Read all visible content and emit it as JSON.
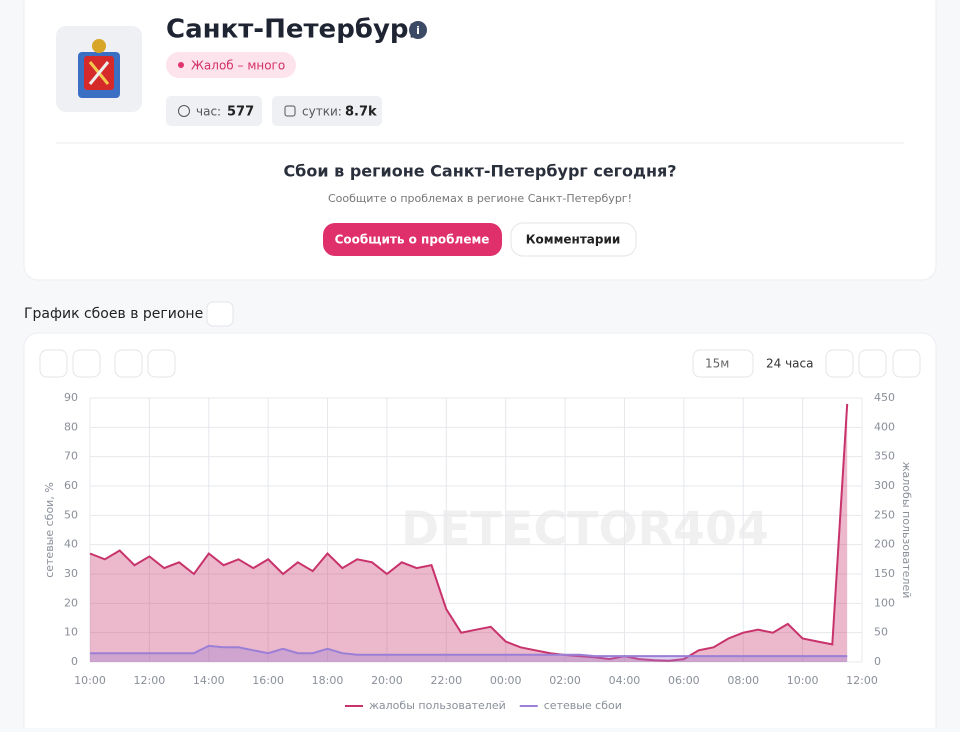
{
  "header": {
    "title": "Санкт-Петербург",
    "badge": "Жалоб – много",
    "stats": [
      {
        "label": "час:",
        "value": "577"
      },
      {
        "label": "сутки:",
        "value": "8.7k"
      }
    ]
  },
  "report": {
    "question": "Сбои в регионе Санкт-Петербург сегодня?",
    "subtitle": "Сообщите о проблемах в регионе Санкт-Петербург!",
    "buttons": [
      "Сообщить о проблеме",
      "Комментарии"
    ]
  },
  "chart_section": {
    "heading": "График сбоев в регионе",
    "interval": "15м",
    "period": "24 часа",
    "watermark": "DETECTOR404"
  },
  "chart_data": {
    "type": "line",
    "ylabel": "сетевые сбои, %",
    "y2label": "жалобы пользователей",
    "x": [
      "10:00",
      "10:30",
      "11:00",
      "11:30",
      "12:00",
      "12:30",
      "13:00",
      "13:30",
      "14:00",
      "14:30",
      "15:00",
      "15:30",
      "16:00",
      "16:30",
      "17:00",
      "17:30",
      "18:00",
      "18:30",
      "19:00",
      "19:30",
      "20:00",
      "20:30",
      "21:00",
      "21:30",
      "22:00",
      "22:30",
      "23:00",
      "23:30",
      "00:00",
      "00:30",
      "01:00",
      "01:30",
      "02:00",
      "02:30",
      "03:00",
      "03:30",
      "04:00",
      "04:30",
      "05:00",
      "05:30",
      "06:00",
      "06:30",
      "07:00",
      "07:30",
      "08:00",
      "08:30",
      "09:00",
      "09:30",
      "10:00",
      "10:30",
      "11:00",
      "11:30"
    ],
    "xticks": [
      "10:00",
      "12:00",
      "14:00",
      "16:00",
      "18:00",
      "20:00",
      "22:00",
      "00:00",
      "02:00",
      "04:00",
      "06:00",
      "08:00",
      "10:00",
      "12:00"
    ],
    "ylim": [
      0,
      90
    ],
    "yticks": [
      0,
      10,
      20,
      30,
      40,
      50,
      60,
      70,
      80,
      90
    ],
    "y2lim": [
      0,
      450
    ],
    "y2ticks": [
      0,
      50,
      100,
      150,
      200,
      250,
      300,
      350,
      400,
      450
    ],
    "grid": true,
    "series": [
      {
        "name": "жалобы пользователей",
        "color": "#c8336b",
        "axis": "y2",
        "values": [
          185,
          175,
          190,
          165,
          180,
          160,
          170,
          150,
          185,
          165,
          175,
          160,
          175,
          150,
          170,
          155,
          185,
          160,
          175,
          170,
          150,
          170,
          160,
          165,
          90,
          50,
          55,
          60,
          35,
          25,
          20,
          15,
          12,
          10,
          8,
          5,
          10,
          5,
          3,
          2,
          5,
          20,
          25,
          40,
          50,
          55,
          50,
          65,
          40,
          35,
          30,
          440
        ]
      },
      {
        "name": "сетевые сбои",
        "color": "#9b7fd6",
        "values": [
          3,
          3,
          3,
          3,
          3,
          3,
          3,
          3,
          5.5,
          5,
          5,
          4,
          3,
          4.5,
          3,
          3,
          4.5,
          3,
          2.5,
          2.5,
          2.5,
          2.5,
          2.5,
          2.5,
          2.5,
          2.5,
          2.5,
          2.5,
          2.5,
          2.5,
          2.5,
          2.5,
          2.5,
          2.5,
          2,
          2,
          2,
          2,
          2,
          2,
          2,
          2,
          2,
          2,
          2,
          2,
          2,
          2,
          2,
          2,
          2,
          2
        ]
      }
    ]
  }
}
